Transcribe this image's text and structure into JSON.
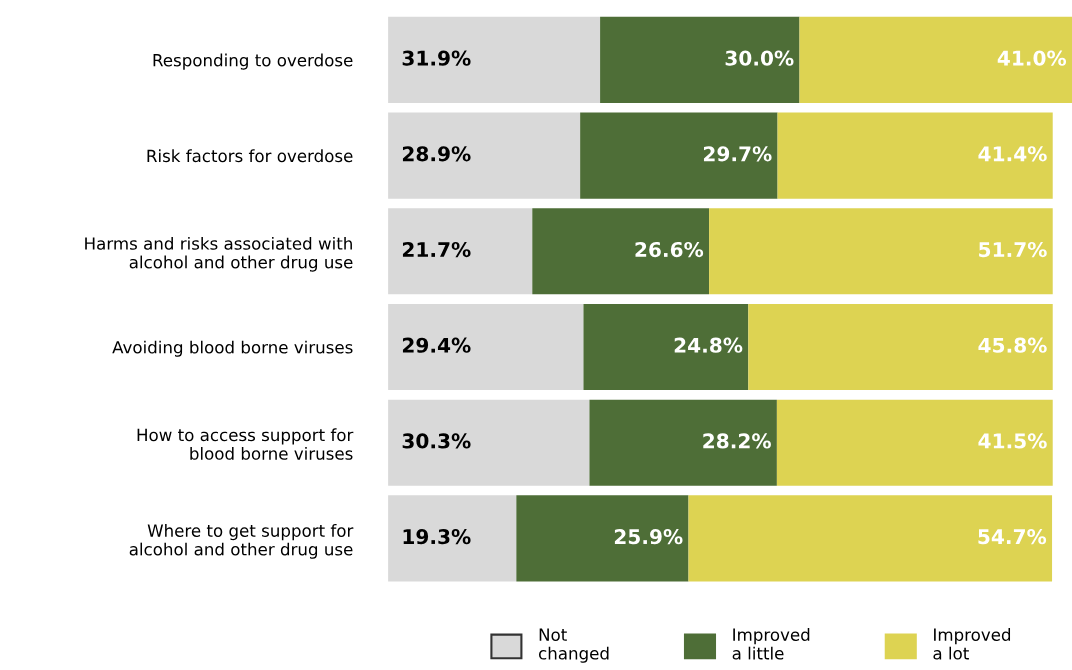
{
  "chart_data": {
    "type": "bar",
    "orientation": "horizontal",
    "stacked": true,
    "categories": [
      "Responding to overdose",
      "Risk factors for overdose",
      "Harms and risks associated with\nalcohol and other drug use",
      "Avoiding blood borne viruses",
      "How to access support for\nblood borne viruses",
      "Where to get support for\nalcohol and other drug use"
    ],
    "series": [
      {
        "name": "Not\nchanged",
        "color": "#d9d9d9",
        "values": [
          31.9,
          28.9,
          21.7,
          29.4,
          30.3,
          19.3
        ],
        "value_labels": [
          "31.9%",
          "28.9%",
          "21.7%",
          "29.4%",
          "30.3%",
          "19.3%"
        ]
      },
      {
        "name": "Improved\na little",
        "color": "#4e6e37",
        "values": [
          30.0,
          29.7,
          26.6,
          24.8,
          28.2,
          25.9
        ],
        "value_labels": [
          "30.0%",
          "29.7%",
          "26.6%",
          "24.8%",
          "28.2%",
          "25.9%"
        ]
      },
      {
        "name": "Improved\na lot",
        "color": "#ddd352",
        "values": [
          41.0,
          41.4,
          51.7,
          45.8,
          41.5,
          54.7
        ],
        "value_labels": [
          "41.0%",
          "41.4%",
          "51.7%",
          "45.8%",
          "41.5%",
          "54.7%"
        ]
      }
    ],
    "tick_labels": "y",
    "legend": "bottom",
    "grid": false
  }
}
